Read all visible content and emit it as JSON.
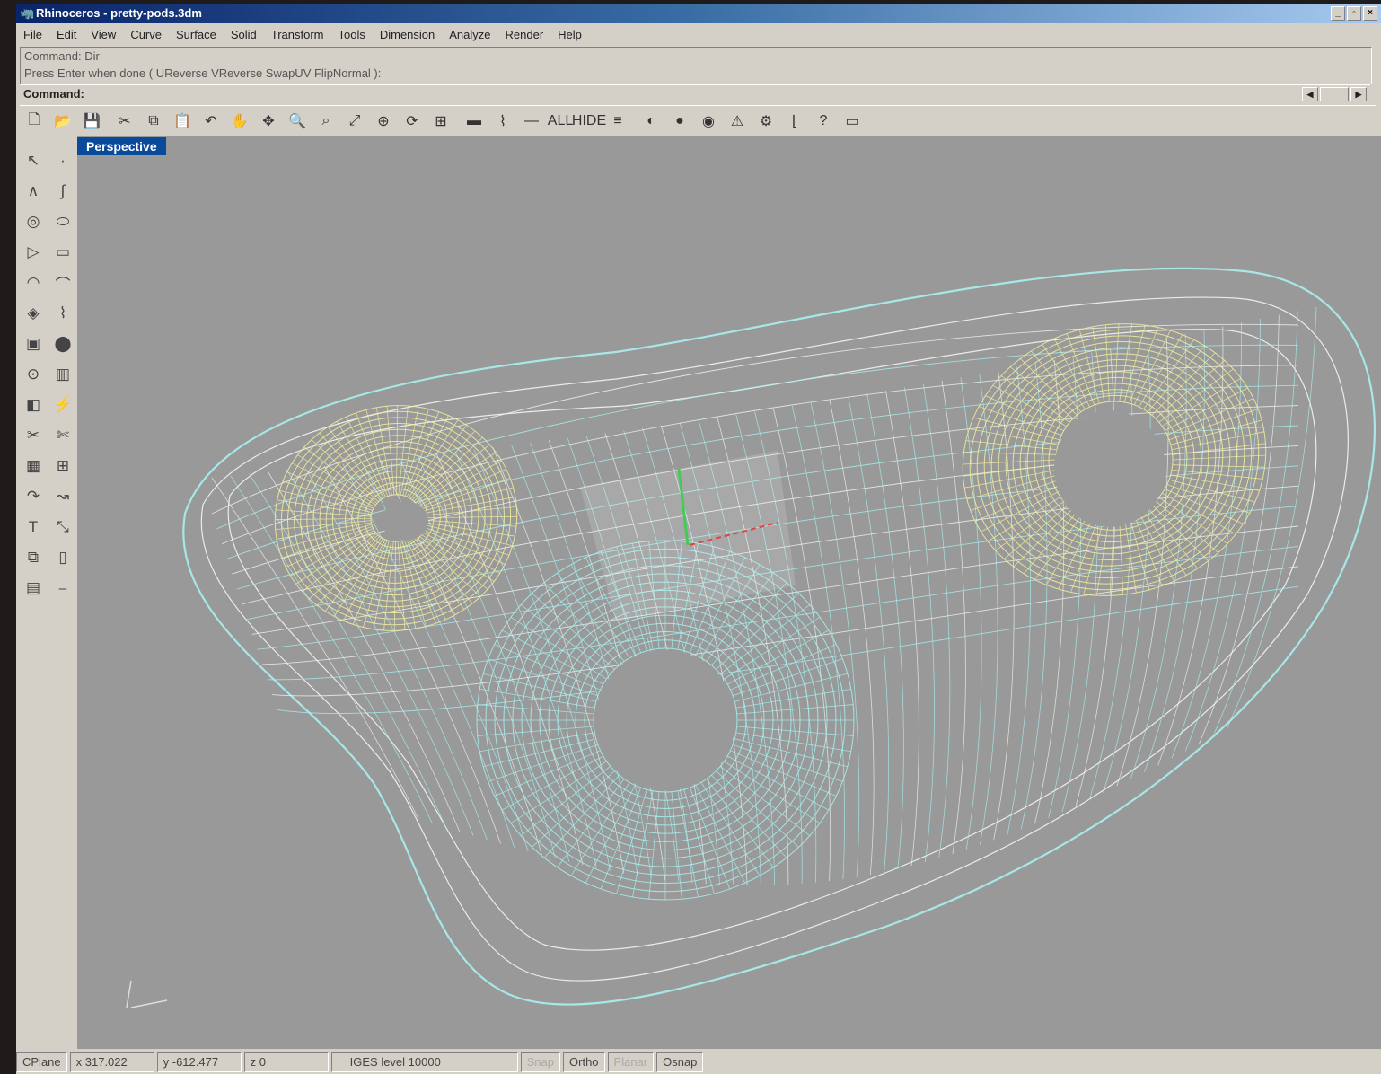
{
  "window": {
    "title": "Rhinoceros - pretty-pods.3dm",
    "buttons": [
      "_",
      "▫",
      "×"
    ]
  },
  "menu": [
    "File",
    "Edit",
    "View",
    "Curve",
    "Surface",
    "Solid",
    "Transform",
    "Tools",
    "Dimension",
    "Analyze",
    "Render",
    "Help"
  ],
  "command": {
    "history": [
      "Command: Dir",
      "Press Enter when done ( UReverse VReverse SwapUV FlipNormal ):"
    ],
    "prompt": "Command:"
  },
  "toolbar_icons": [
    "new-file-icon",
    "open-folder-icon",
    "save-icon",
    "cut-icon",
    "copy-icon",
    "paste-icon",
    "undo-icon",
    "pan-hand-icon",
    "move-view-icon",
    "zoom-icon",
    "zoom-window-icon",
    "zoom-extents-icon",
    "zoom-selected-icon",
    "rotate-view-icon",
    "four-viewports-icon",
    "cplane-icon",
    "grid-icon",
    "line-icon",
    "all-icon",
    "hide-icon",
    "layers-icon",
    "color-wheel-icon",
    "shaded-sphere-icon",
    "render-sphere-icon",
    "light-icon",
    "lock-icon",
    "dimension-icon",
    "help-icon",
    "properties-icon"
  ],
  "toolbar_glyphs": [
    "🗋",
    "📂",
    "💾",
    "✂",
    "⧉",
    "📋",
    "↶",
    "✋",
    "✥",
    "🔍",
    "⌕",
    "⤢",
    "⊕",
    "⟳",
    "⊞",
    "▬",
    "⌇",
    "—",
    "ALL",
    "HIDE",
    "≡",
    "◐",
    "●",
    "◉",
    "⚠",
    "⚙",
    "⌊",
    "?",
    "▭"
  ],
  "sidebar_icons": [
    "select-icon",
    "point-icon",
    "polyline-icon",
    "curve-icon",
    "circle-icon",
    "ellipse-icon",
    "polygon-icon",
    "rectangle-icon",
    "arc-icon",
    "fillet-icon",
    "surface-icon",
    "loft-icon",
    "box-icon",
    "sphere-icon",
    "cylinder-icon",
    "boolean-icon",
    "cplane-icon",
    "mesh-icon",
    "trim-icon",
    "split-icon",
    "array-icon",
    "group-icon",
    "curve-tools-icon",
    "blend-icon",
    "text-icon",
    "dimension-icon",
    "transform-icon",
    "layout-icon",
    "view-icon",
    "measure-icon"
  ],
  "sidebar_glyphs": [
    "↖",
    "·",
    "∧",
    "∫",
    "◎",
    "⬭",
    "▷",
    "▭",
    "◠",
    "⌒",
    "◈",
    "⌇",
    "▣",
    "⬤",
    "⊙",
    "▥",
    "◧",
    "⚡",
    "✂",
    "✄",
    "▦",
    "⊞",
    "↷",
    "↝",
    "T",
    "⤡",
    "⧉",
    "▯",
    "▤",
    "⎯"
  ],
  "viewport": {
    "label": "Perspective"
  },
  "status": {
    "cplane": "CPlane",
    "x": "x 317.022",
    "y": "y -612.477",
    "z": "z 0",
    "layer": "IGES level 10000",
    "snap": "Snap",
    "ortho": "Ortho",
    "planar": "Planar",
    "osnap": "Osnap"
  }
}
